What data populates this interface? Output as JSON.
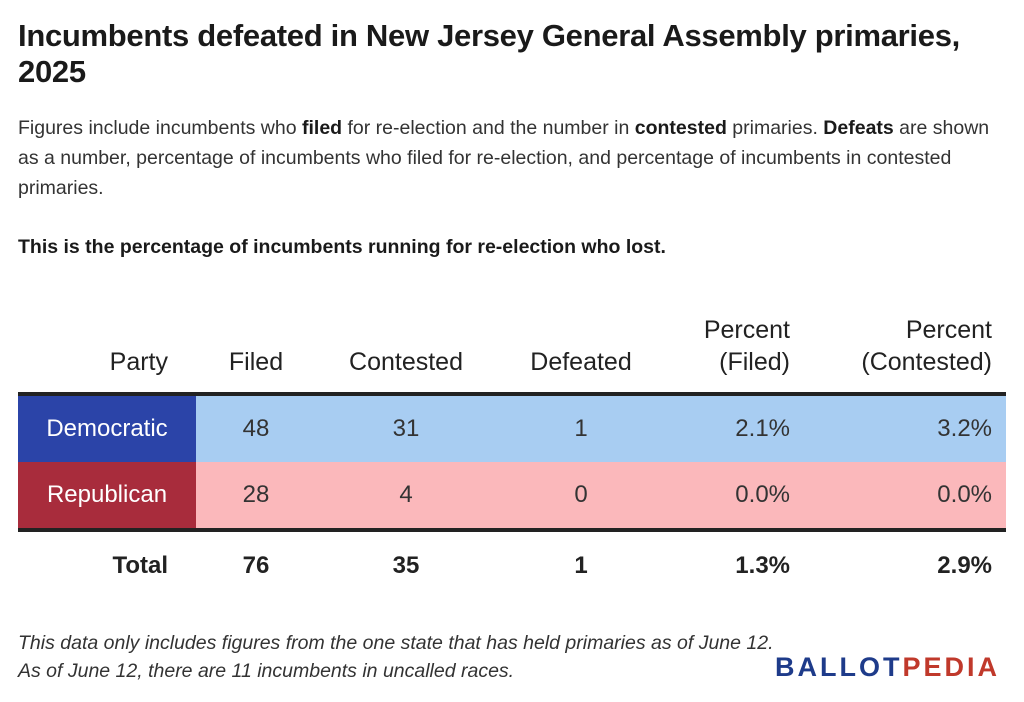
{
  "title": "Incumbents defeated in New Jersey General Assembly primaries, 2025",
  "subtitle": {
    "p1": "Figures include incumbents who ",
    "b1": "filed",
    "p2": " for re-election and the number in ",
    "b2": "contested",
    "p3": " primaries. ",
    "b3": "Defeats",
    "p4": " are shown as a number, percentage of incumbents who filed for re-election, and percentage of incumbents in contested primaries."
  },
  "highlight": "This is the percentage of incumbents running for re-election who lost.",
  "chart_data": {
    "type": "table",
    "columns": [
      "Party",
      "Filed",
      "Contested",
      "Defeated",
      "Percent (Filed)",
      "Percent (Contested)"
    ],
    "column_lines": {
      "party": [
        "Party"
      ],
      "filed": [
        "Filed"
      ],
      "contested": [
        "Contested"
      ],
      "defeated": [
        "Defeated"
      ],
      "pct_filed": [
        "Percent",
        "(Filed)"
      ],
      "pct_contested": [
        "Percent",
        "(Contested)"
      ]
    },
    "rows": [
      {
        "party": "Democratic",
        "filed": "48",
        "contested": "31",
        "defeated": "1",
        "pct_filed": "2.1%",
        "pct_contested": "3.2%",
        "party_color": "#2b44a8",
        "row_color": "#a8cdf2"
      },
      {
        "party": "Republican",
        "filed": "28",
        "contested": "4",
        "defeated": "0",
        "pct_filed": "0.0%",
        "pct_contested": "0.0%",
        "party_color": "#a82c3c",
        "row_color": "#fbb8bb"
      }
    ],
    "total": {
      "label": "Total",
      "filed": "76",
      "contested": "35",
      "defeated": "1",
      "pct_filed": "1.3%",
      "pct_contested": "2.9%"
    }
  },
  "footnote": "This data only includes figures from the one state that has held primaries as of June 12. As of June 12, there are 11 incumbents in uncalled races.",
  "brand": {
    "part1": "BALLOT",
    "part2": "PEDIA"
  }
}
